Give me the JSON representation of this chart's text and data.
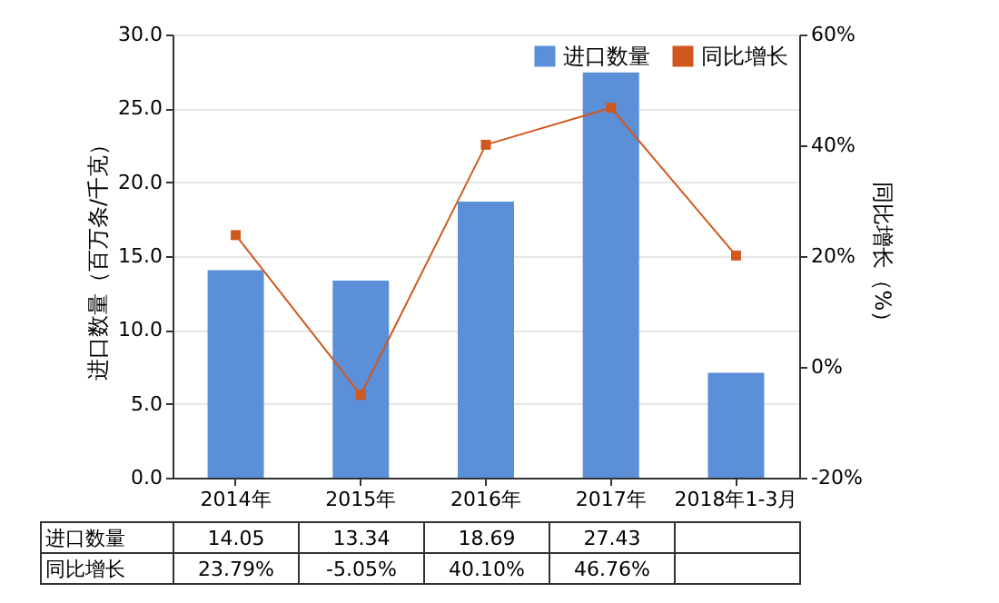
{
  "chart_data": {
    "type": "bar",
    "categories": [
      "2014年",
      "2015年",
      "2016年",
      "2017年",
      "2018年1-3月"
    ],
    "series": [
      {
        "name": "进口数量",
        "color": "#5b8fd8",
        "values": [
          14.05,
          13.34,
          18.69,
          27.43,
          7.1
        ],
        "value_labels": [
          "14.05",
          "13.34",
          "18.69",
          "27.43",
          null
        ]
      },
      {
        "name": "同比增长",
        "type": "line",
        "axis": "y2",
        "color": "#d0581e",
        "values": [
          23.79,
          -5.05,
          40.1,
          46.76,
          20.1
        ],
        "value_labels": [
          "23.79%",
          "-5.05%",
          "40.10%",
          "46.76%",
          null
        ]
      }
    ],
    "ylabel": "进口数量（百万条/千克）",
    "y2label": "同比增长（%）",
    "ylim": [
      0,
      30
    ],
    "yticks": [
      {
        "value": 0,
        "label": "0.0"
      },
      {
        "value": 5,
        "label": "5.0"
      },
      {
        "value": 10,
        "label": "10.0"
      },
      {
        "value": 15,
        "label": "15.0"
      },
      {
        "value": 20,
        "label": "20.0"
      },
      {
        "value": 25,
        "label": "25.0"
      },
      {
        "value": 30,
        "label": "30.0"
      }
    ],
    "y2lim": [
      -20,
      60
    ],
    "y2ticks": [
      {
        "value": -20,
        "label": "-20%"
      },
      {
        "value": 0,
        "label": "0%"
      },
      {
        "value": 20,
        "label": "20%"
      },
      {
        "value": 40,
        "label": "40%"
      },
      {
        "value": 60,
        "label": "60%"
      }
    ],
    "grid": "y",
    "legend": "top right",
    "marker": "square",
    "line_style": "solid"
  }
}
